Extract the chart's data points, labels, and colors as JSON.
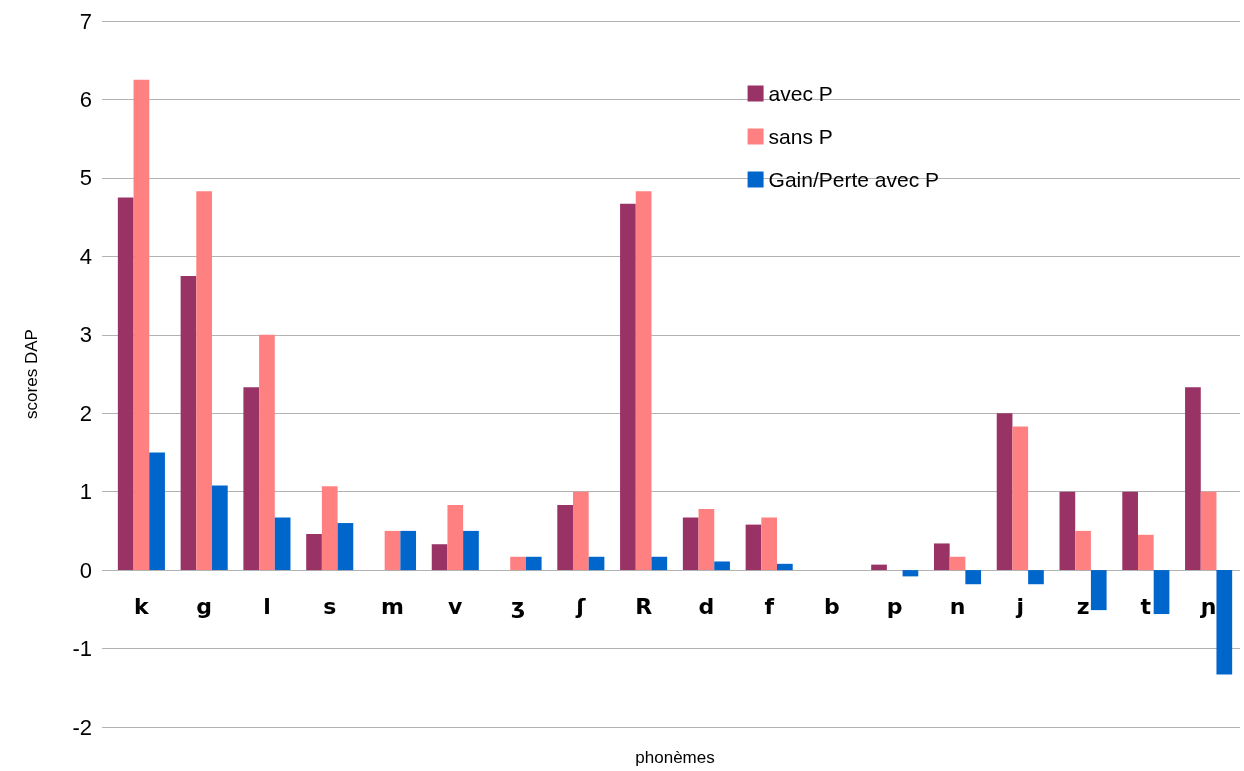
{
  "chart_data": {
    "type": "bar",
    "xlabel": "phonèmes",
    "ylabel": "scores DAP",
    "categories": [
      "k",
      "g",
      "l",
      "s",
      "m",
      "v",
      "ʒ",
      "ʃ",
      "R",
      "d",
      "f",
      "b",
      "p",
      "n",
      "j",
      "z",
      "t",
      "ɲ"
    ],
    "series": [
      {
        "name": "avec P",
        "color": "#993366",
        "values": [
          4.75,
          3.75,
          2.33,
          0.46,
          0,
          0.33,
          0,
          0.83,
          4.67,
          0.67,
          0.58,
          0,
          0.07,
          0.34,
          2.0,
          1.0,
          1.0,
          2.33
        ]
      },
      {
        "name": "sans P",
        "color": "#ff8080",
        "values": [
          6.25,
          4.83,
          3.0,
          1.07,
          0.5,
          0.83,
          0.17,
          1.0,
          4.83,
          0.78,
          0.67,
          0,
          0,
          0.17,
          1.83,
          0.5,
          0.45,
          1.0
        ]
      },
      {
        "name": "Gain/Perte avec P",
        "color": "#0066cc",
        "values": [
          1.5,
          1.08,
          0.67,
          0.6,
          0.5,
          0.5,
          0.17,
          0.17,
          0.17,
          0.11,
          0.08,
          0,
          -0.08,
          -0.18,
          -0.18,
          -0.51,
          -0.56,
          -1.33
        ]
      }
    ],
    "ylim": [
      -2,
      7
    ],
    "yticks": [
      -2,
      -1,
      0,
      1,
      2,
      3,
      4,
      5,
      6,
      7
    ],
    "grid": "y",
    "legend": "top right"
  }
}
